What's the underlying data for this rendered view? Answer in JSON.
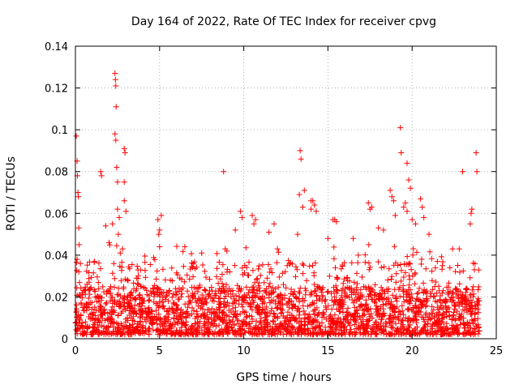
{
  "chart_data": {
    "type": "scatter",
    "title": "Day 164 of 2022, Rate Of TEC Index for receiver cpvg",
    "xlabel": "GPS time / hours",
    "ylabel": "ROTI / TECUs",
    "xlim": [
      0,
      25
    ],
    "ylim": [
      0,
      0.14
    ],
    "xticks": [
      0,
      5,
      10,
      15,
      20,
      25
    ],
    "yticks": [
      0,
      0.02,
      0.04,
      0.06,
      0.08,
      0.1,
      0.12,
      0.14
    ],
    "xtick_labels": [
      "0",
      "5",
      "10",
      "15",
      "20",
      "25"
    ],
    "ytick_labels": [
      "0",
      "0.02",
      "0.04",
      "0.06",
      "0.08",
      "0.1",
      "0.12",
      "0.14"
    ],
    "grid": true,
    "marker": "+",
    "series_color": "#ff0000",
    "series": [
      {
        "name": "ROTI",
        "description_points": "dense cloud of observations between 0 and 24 hours, mostly 0.005-0.02 with spikes",
        "points": [
          [
            0.05,
            0.097
          ],
          [
            0.1,
            0.085
          ],
          [
            0.12,
            0.078
          ],
          [
            0.15,
            0.07
          ],
          [
            0.18,
            0.068
          ],
          [
            0.2,
            0.053
          ],
          [
            0.22,
            0.045
          ],
          [
            0.1,
            0.038
          ],
          [
            0.3,
            0.036
          ],
          [
            1.5,
            0.08
          ],
          [
            1.55,
            0.078
          ],
          [
            1.8,
            0.054
          ],
          [
            2.0,
            0.046
          ],
          [
            2.2,
            0.055
          ],
          [
            2.35,
            0.127
          ],
          [
            2.38,
            0.124
          ],
          [
            2.4,
            0.121
          ],
          [
            2.42,
            0.111
          ],
          [
            2.35,
            0.098
          ],
          [
            2.4,
            0.095
          ],
          [
            2.45,
            0.082
          ],
          [
            2.5,
            0.075
          ],
          [
            2.5,
            0.062
          ],
          [
            2.6,
            0.058
          ],
          [
            2.55,
            0.05
          ],
          [
            2.9,
            0.091
          ],
          [
            2.95,
            0.089
          ],
          [
            2.9,
            0.075
          ],
          [
            2.9,
            0.066
          ],
          [
            3.0,
            0.061
          ],
          [
            2.8,
            0.043
          ],
          [
            4.9,
            0.057
          ],
          [
            5.0,
            0.052
          ],
          [
            4.95,
            0.05
          ],
          [
            5.1,
            0.059
          ],
          [
            5.0,
            0.044
          ],
          [
            6.5,
            0.044
          ],
          [
            7.0,
            0.036
          ],
          [
            7.5,
            0.041
          ],
          [
            8.8,
            0.08
          ],
          [
            8.9,
            0.043
          ],
          [
            9.0,
            0.042
          ],
          [
            9.5,
            0.052
          ],
          [
            9.8,
            0.061
          ],
          [
            9.9,
            0.058
          ],
          [
            10.5,
            0.059
          ],
          [
            10.6,
            0.055
          ],
          [
            10.7,
            0.057
          ],
          [
            11.5,
            0.051
          ],
          [
            11.8,
            0.055
          ],
          [
            12.0,
            0.043
          ],
          [
            13.3,
            0.069
          ],
          [
            13.35,
            0.09
          ],
          [
            13.4,
            0.086
          ],
          [
            13.5,
            0.063
          ],
          [
            13.6,
            0.071
          ],
          [
            13.2,
            0.05
          ],
          [
            14.0,
            0.066
          ],
          [
            14.1,
            0.066
          ],
          [
            14.2,
            0.064
          ],
          [
            14.3,
            0.061
          ],
          [
            14.0,
            0.062
          ],
          [
            15.0,
            0.048
          ],
          [
            15.3,
            0.057
          ],
          [
            15.4,
            0.057
          ],
          [
            15.5,
            0.056
          ],
          [
            16.5,
            0.048
          ],
          [
            16.8,
            0.04
          ],
          [
            17.4,
            0.065
          ],
          [
            17.5,
            0.062
          ],
          [
            17.6,
            0.063
          ],
          [
            18.0,
            0.053
          ],
          [
            18.3,
            0.052
          ],
          [
            18.7,
            0.071
          ],
          [
            18.8,
            0.068
          ],
          [
            18.9,
            0.066
          ],
          [
            19.3,
            0.101
          ],
          [
            19.35,
            0.089
          ],
          [
            19.0,
            0.059
          ],
          [
            19.5,
            0.063
          ],
          [
            19.6,
            0.065
          ],
          [
            19.7,
            0.084
          ],
          [
            19.8,
            0.076
          ],
          [
            19.9,
            0.072
          ],
          [
            19.7,
            0.061
          ],
          [
            20.0,
            0.057
          ],
          [
            20.2,
            0.055
          ],
          [
            20.5,
            0.067
          ],
          [
            20.6,
            0.063
          ],
          [
            20.7,
            0.058
          ],
          [
            21.0,
            0.05
          ],
          [
            21.5,
            0.037
          ],
          [
            21.8,
            0.035
          ],
          [
            22.4,
            0.043
          ],
          [
            22.8,
            0.043
          ],
          [
            23.0,
            0.08
          ],
          [
            23.5,
            0.06
          ],
          [
            23.55,
            0.062
          ],
          [
            23.45,
            0.055
          ],
          [
            23.8,
            0.089
          ],
          [
            23.85,
            0.08
          ],
          [
            23.7,
            0.033
          ]
        ],
        "base_band": {
          "x_range": [
            0,
            24
          ],
          "low": 0.002,
          "typical": 0.012,
          "high": 0.025
        }
      }
    ]
  }
}
